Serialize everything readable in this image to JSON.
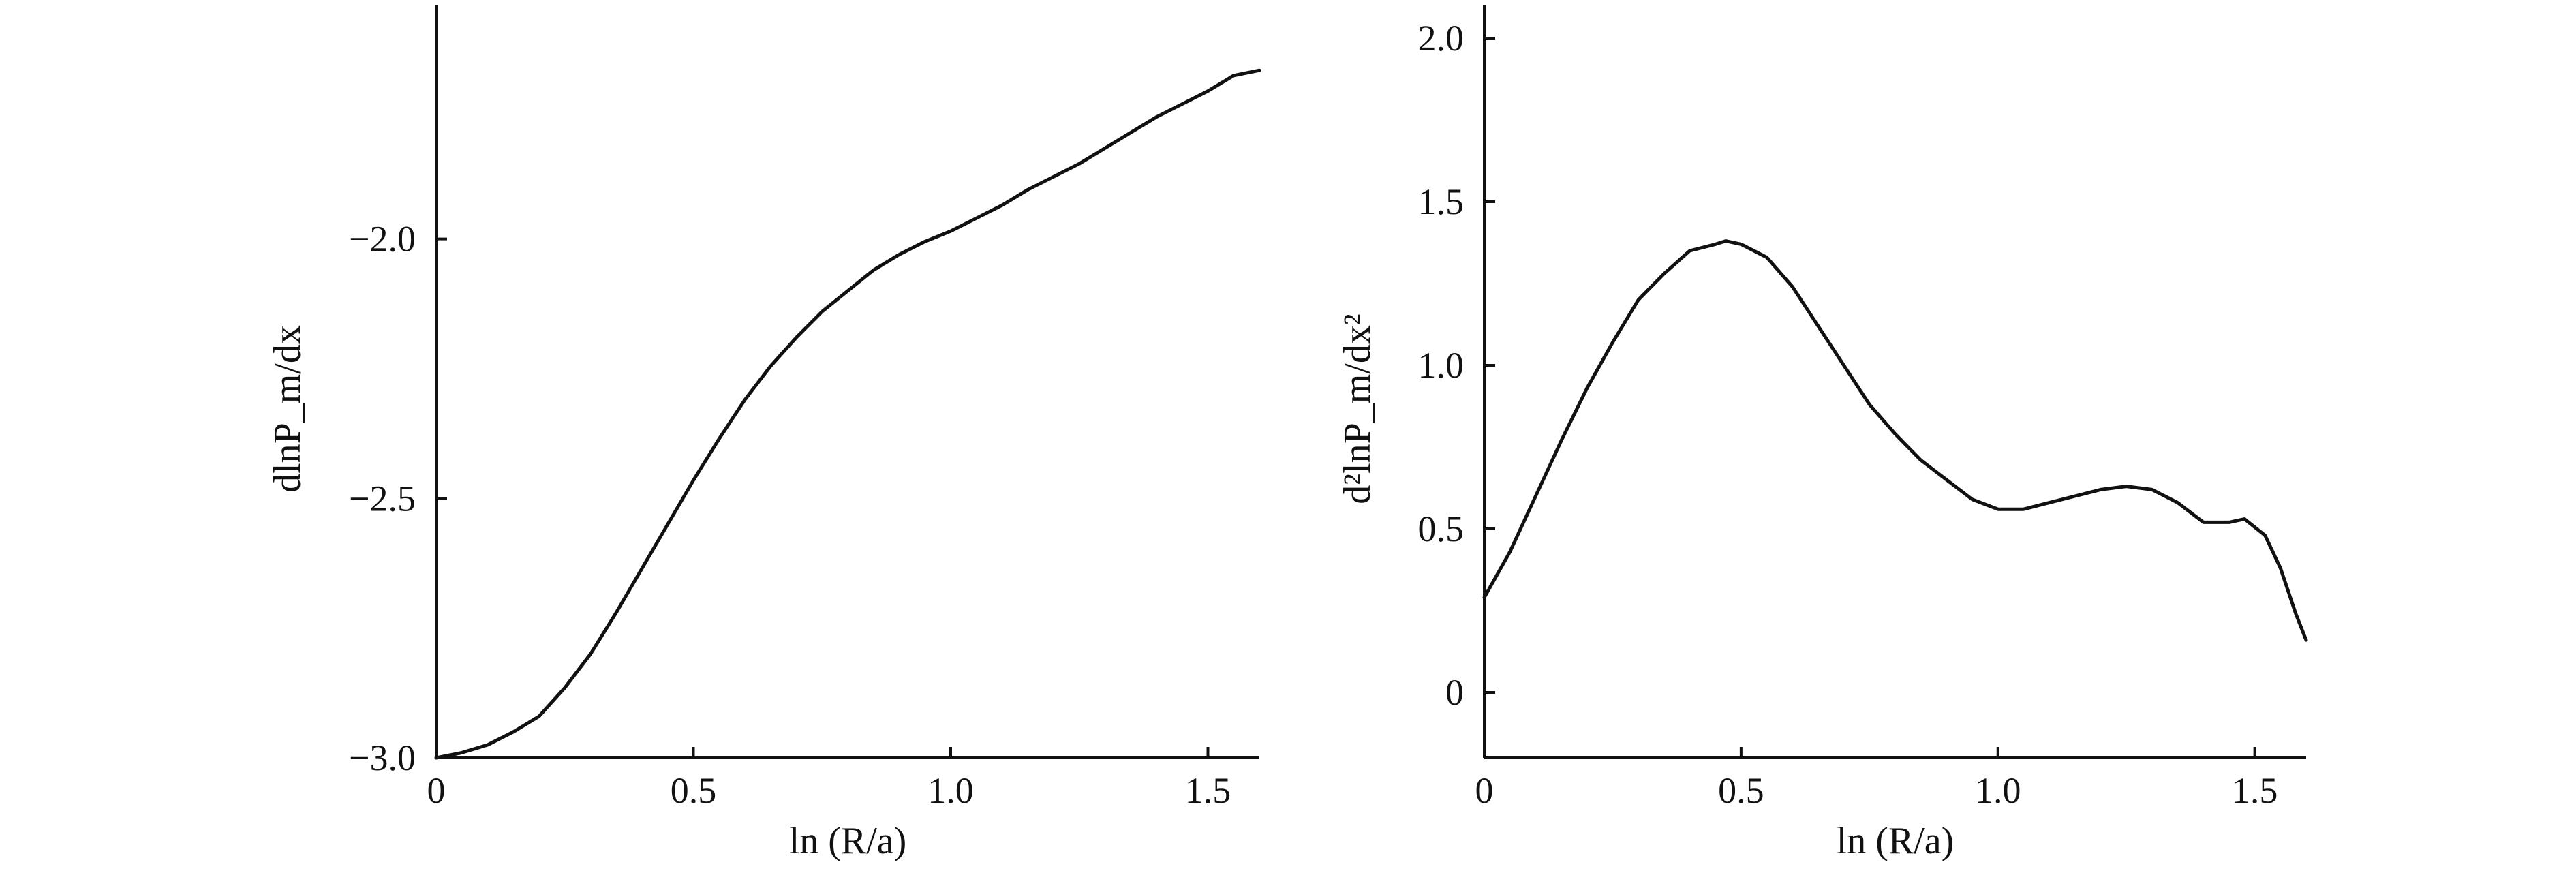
{
  "chart_data": [
    {
      "type": "line",
      "xlabel": "ln (R/a)",
      "ylabel": "dlnP_m/dx",
      "xlim": [
        0,
        1.6
      ],
      "ylim": [
        -3.0,
        -1.55
      ],
      "xticks": [
        0,
        0.5,
        1.0,
        1.5
      ],
      "xtick_labels": [
        "0",
        "0.5",
        "1.0",
        "1.5"
      ],
      "yticks": [
        -3.0,
        -2.5,
        -2.0
      ],
      "ytick_labels": [
        "−3.0",
        "−2.5",
        "−2.0"
      ],
      "grid": false,
      "series": [
        {
          "x": [
            0,
            0.05,
            0.1,
            0.15,
            0.2,
            0.25,
            0.3,
            0.35,
            0.4,
            0.45,
            0.5,
            0.55,
            0.6,
            0.65,
            0.7,
            0.75,
            0.8,
            0.85,
            0.9,
            0.95,
            1.0,
            1.05,
            1.1,
            1.15,
            1.2,
            1.25,
            1.3,
            1.35,
            1.4,
            1.45,
            1.5,
            1.55,
            1.6
          ],
          "y": [
            -3.0,
            -2.99,
            -2.975,
            -2.95,
            -2.92,
            -2.865,
            -2.8,
            -2.72,
            -2.635,
            -2.55,
            -2.465,
            -2.385,
            -2.31,
            -2.245,
            -2.19,
            -2.14,
            -2.1,
            -2.06,
            -2.03,
            -2.005,
            -1.985,
            -1.96,
            -1.935,
            -1.905,
            -1.88,
            -1.855,
            -1.825,
            -1.795,
            -1.765,
            -1.74,
            -1.715,
            -1.685,
            -1.675
          ]
        }
      ]
    },
    {
      "type": "line",
      "xlabel": "ln (R/a)",
      "ylabel": "d²lnP_m/dx²",
      "xlim": [
        0,
        1.6
      ],
      "ylim": [
        -0.2,
        2.1
      ],
      "xticks": [
        0,
        0.5,
        1.0,
        1.5
      ],
      "xtick_labels": [
        "0",
        "0.5",
        "1.0",
        "1.5"
      ],
      "yticks": [
        0,
        0.5,
        1.0,
        1.5,
        2.0
      ],
      "ytick_labels": [
        "0",
        "0.5",
        "1.0",
        "1.5",
        "2.0"
      ],
      "grid": false,
      "series": [
        {
          "x": [
            0,
            0.05,
            0.1,
            0.15,
            0.2,
            0.25,
            0.3,
            0.35,
            0.4,
            0.45,
            0.47,
            0.5,
            0.55,
            0.6,
            0.65,
            0.7,
            0.75,
            0.8,
            0.85,
            0.9,
            0.95,
            1.0,
            1.05,
            1.1,
            1.15,
            1.2,
            1.25,
            1.3,
            1.35,
            1.4,
            1.45,
            1.48,
            1.52,
            1.55,
            1.58,
            1.6
          ],
          "y": [
            0.29,
            0.43,
            0.6,
            0.77,
            0.93,
            1.07,
            1.2,
            1.28,
            1.35,
            1.37,
            1.38,
            1.37,
            1.33,
            1.24,
            1.12,
            1.0,
            0.88,
            0.79,
            0.71,
            0.65,
            0.59,
            0.56,
            0.56,
            0.58,
            0.6,
            0.62,
            0.63,
            0.62,
            0.58,
            0.52,
            0.52,
            0.53,
            0.48,
            0.38,
            0.24,
            0.16
          ]
        }
      ]
    }
  ]
}
